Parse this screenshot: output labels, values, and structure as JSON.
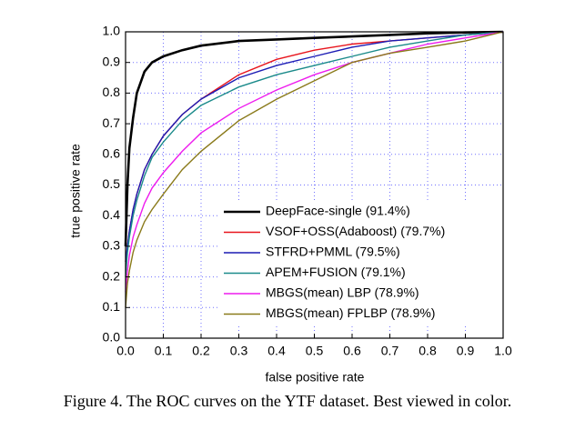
{
  "chart_data": {
    "type": "line",
    "xlabel": "false positive rate",
    "ylabel": "true positive rate",
    "caption": "Figure 4. The ROC curves on the YTF dataset. Best viewed in color.",
    "x": [
      0,
      0.005,
      0.01,
      0.02,
      0.03,
      0.05,
      0.07,
      0.1,
      0.15,
      0.2,
      0.3,
      0.4,
      0.5,
      0.6,
      0.7,
      0.8,
      0.9,
      1.0
    ],
    "series": [
      {
        "name": "DeepFace-single (91.4%)",
        "color": "#000000",
        "values": [
          0.3,
          0.5,
          0.62,
          0.72,
          0.8,
          0.87,
          0.9,
          0.92,
          0.94,
          0.955,
          0.97,
          0.975,
          0.98,
          0.985,
          0.99,
          0.995,
          0.998,
          1.0
        ]
      },
      {
        "name": "VSOF+OSS(Adaboost) (79.7%)",
        "color": "#e8141c",
        "values": [
          0.25,
          0.3,
          0.35,
          0.42,
          0.47,
          0.55,
          0.6,
          0.66,
          0.73,
          0.78,
          0.86,
          0.91,
          0.94,
          0.96,
          0.97,
          0.98,
          0.99,
          1.0
        ]
      },
      {
        "name": "STFRD+PMML (79.5%)",
        "color": "#1c1cb4",
        "values": [
          0.25,
          0.3,
          0.35,
          0.42,
          0.47,
          0.55,
          0.6,
          0.66,
          0.73,
          0.78,
          0.85,
          0.89,
          0.92,
          0.95,
          0.97,
          0.98,
          0.99,
          1.0
        ]
      },
      {
        "name": "APEM+FUSION (79.1%)",
        "color": "#1a8a8a",
        "values": [
          0.2,
          0.28,
          0.33,
          0.4,
          0.45,
          0.53,
          0.59,
          0.64,
          0.71,
          0.76,
          0.82,
          0.86,
          0.89,
          0.92,
          0.95,
          0.97,
          0.99,
          1.0
        ]
      },
      {
        "name": "MBGS(mean) LBP (78.9%)",
        "color": "#ee1cee",
        "values": [
          0.15,
          0.22,
          0.27,
          0.33,
          0.37,
          0.44,
          0.49,
          0.54,
          0.61,
          0.67,
          0.75,
          0.81,
          0.86,
          0.9,
          0.93,
          0.96,
          0.98,
          1.0
        ]
      },
      {
        "name": "MBGS(mean) FPLBP (78.9%)",
        "color": "#8a7a1a",
        "values": [
          0.1,
          0.18,
          0.22,
          0.28,
          0.32,
          0.38,
          0.42,
          0.47,
          0.55,
          0.61,
          0.71,
          0.78,
          0.84,
          0.9,
          0.93,
          0.95,
          0.97,
          1.0
        ]
      }
    ],
    "xlim": [
      0,
      1
    ],
    "ylim": [
      0,
      1
    ],
    "xticks": [
      {
        "value": 0,
        "label": "0.0"
      },
      0.1,
      0.2,
      0.3,
      0.4,
      0.5,
      0.6,
      0.7,
      0.8,
      0.9,
      {
        "value": 1,
        "label": "1.0"
      }
    ],
    "yticks": [
      {
        "value": 0,
        "label": "0.0"
      },
      0.1,
      0.2,
      0.3,
      0.4,
      0.5,
      0.6,
      0.7,
      0.8,
      0.9,
      {
        "value": 1,
        "label": "1.0"
      }
    ],
    "grid": true,
    "legend": "lower right"
  }
}
